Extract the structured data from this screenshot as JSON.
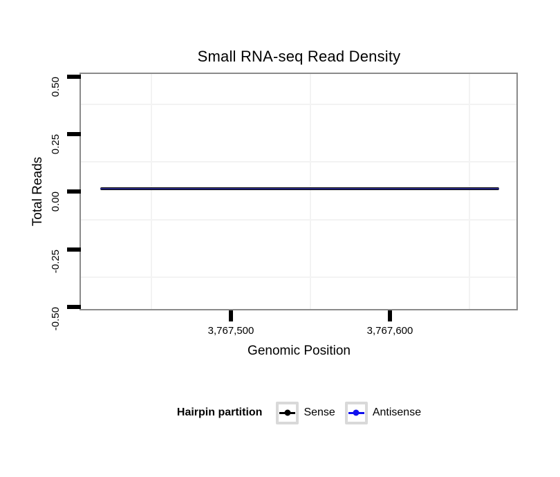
{
  "chart_data": {
    "type": "line",
    "title": "Small RNA-seq Read Density",
    "xlabel": "Genomic Position",
    "ylabel": "Total Reads",
    "xlim": [
      3767405,
      3767683
    ],
    "xticks": [
      {
        "value": 3767500,
        "label": "3,767,500"
      },
      {
        "value": 3767600,
        "label": "3,767,600"
      }
    ],
    "ylim": [
      -0.5,
      0.5
    ],
    "yticks": [
      {
        "value": 0.5,
        "label": "0.50"
      },
      {
        "value": 0.25,
        "label": "0.25"
      },
      {
        "value": 0.0,
        "label": "0.00"
      },
      {
        "value": -0.25,
        "label": "-0.25"
      },
      {
        "value": -0.5,
        "label": "-0.50"
      }
    ],
    "series": [
      {
        "name": "Sense",
        "color": "#000000",
        "x_start": 3767418,
        "x_end": 3767669,
        "y_constant": 0
      },
      {
        "name": "Antisense",
        "color": "#1111ee",
        "x_start": 3767418,
        "x_end": 3767669,
        "y_constant": 0
      }
    ],
    "legend": {
      "title": "Hairpin partition",
      "position": "bottom",
      "entries": [
        "Sense",
        "Antisense"
      ]
    },
    "grid": {
      "major": "none",
      "minor_color": "#f3f3f3"
    },
    "panel_border_color": "#8a8a8a",
    "tick_color": "#000000",
    "background": "#ffffff"
  }
}
